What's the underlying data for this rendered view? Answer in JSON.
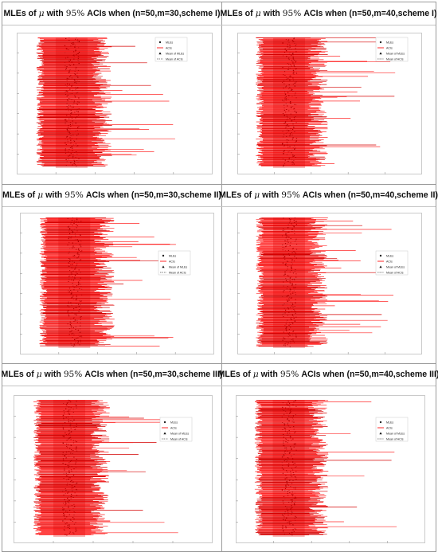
{
  "panels": [
    {
      "title_prefix": "MLEs of",
      "title_symbol": "μ",
      "title_mid": "with",
      "title_pct": "95%",
      "title_suffix": "ACIs when (n=50,m=30,scheme I)",
      "legend": [
        "MLEs",
        "ACIs",
        "Mean of MLEs",
        "Mean of ACIs"
      ]
    },
    {
      "title_prefix": "MLEs of",
      "title_symbol": "μ",
      "title_mid": "with",
      "title_pct": "95%",
      "title_suffix": "ACIs when (n=50,m=40,scheme I)",
      "legend": [
        "MLEs",
        "ACIs",
        "Mean of MLEs",
        "Mean of ACIs"
      ]
    },
    {
      "title_prefix": "MLEs of",
      "title_symbol": "μ",
      "title_mid": "with",
      "title_pct": "95%",
      "title_suffix": "ACIs when (n=50,m=30,scheme II)",
      "legend": [
        "MLEs",
        "ACIs",
        "Mean of MLEs",
        "Mean of ACIs"
      ]
    },
    {
      "title_prefix": "MLEs of",
      "title_symbol": "μ",
      "title_mid": "with",
      "title_pct": "95%",
      "title_suffix": "ACIs when (n=50,m=40,scheme II)",
      "legend": [
        "MLEs",
        "ACIs",
        "Mean of MLEs",
        "Mean of ACIs"
      ]
    },
    {
      "title_prefix": "MLEs of",
      "title_symbol": "μ",
      "title_mid": "with",
      "title_pct": "95%",
      "title_suffix": "ACIs when (n=50,m=30,scheme III)",
      "legend": [
        "MLEs",
        "ACIs",
        "Mean of MLEs",
        "Mean of ACIs"
      ]
    },
    {
      "title_prefix": "MLEs of",
      "title_symbol": "μ",
      "title_mid": "with",
      "title_pct": "95%",
      "title_suffix": "ACIs when (n=50,m=40,scheme III)",
      "legend": [
        "MLEs",
        "ACIs",
        "Mean of MLEs",
        "Mean of ACIs"
      ]
    }
  ],
  "colors": {
    "interval": "#ff2a2a",
    "interval_dark": "#d40000",
    "mle_point": "#9a0000",
    "frame": "#9a9a9a",
    "axis": "#888888"
  },
  "chart_data": [
    {
      "type": "scatter",
      "title": "MLEs of μ with 95% ACIs when (n=50,m=30,scheme I)",
      "series": [
        {
          "name": "MLEs"
        },
        {
          "name": "ACIs"
        },
        {
          "name": "Mean of MLEs"
        },
        {
          "name": "Mean of ACIs"
        }
      ],
      "grid": true,
      "legend": "top-right"
    },
    {
      "type": "scatter",
      "title": "MLEs of μ with 95% ACIs when (n=50,m=40,scheme I)",
      "series": [
        {
          "name": "MLEs"
        },
        {
          "name": "ACIs"
        },
        {
          "name": "Mean of MLEs"
        },
        {
          "name": "Mean of ACIs"
        }
      ],
      "grid": true,
      "legend": "top-right"
    },
    {
      "type": "scatter",
      "title": "MLEs of μ with 95% ACIs when (n=50,m=30,scheme II)",
      "series": [
        {
          "name": "MLEs"
        },
        {
          "name": "ACIs"
        },
        {
          "name": "Mean of MLEs"
        },
        {
          "name": "Mean of ACIs"
        }
      ],
      "grid": true,
      "legend": "right"
    },
    {
      "type": "scatter",
      "title": "MLEs of μ with 95% ACIs when (n=50,m=40,scheme II)",
      "series": [
        {
          "name": "MLEs"
        },
        {
          "name": "ACIs"
        },
        {
          "name": "Mean of MLEs"
        },
        {
          "name": "Mean of ACIs"
        }
      ],
      "grid": true,
      "legend": "right"
    },
    {
      "type": "scatter",
      "title": "MLEs of μ with 95% ACIs when (n=50,m=30,scheme III)",
      "series": [
        {
          "name": "MLEs"
        },
        {
          "name": "ACIs"
        },
        {
          "name": "Mean of MLEs"
        },
        {
          "name": "Mean of ACIs"
        }
      ],
      "grid": true,
      "legend": "top-right"
    },
    {
      "type": "scatter",
      "title": "MLEs of μ with 95% ACIs when (n=50,m=40,scheme III)",
      "series": [
        {
          "name": "MLEs"
        },
        {
          "name": "ACIs"
        },
        {
          "name": "Mean of MLEs"
        },
        {
          "name": "Mean of ACIs"
        }
      ],
      "grid": true,
      "legend": "top-right"
    }
  ]
}
